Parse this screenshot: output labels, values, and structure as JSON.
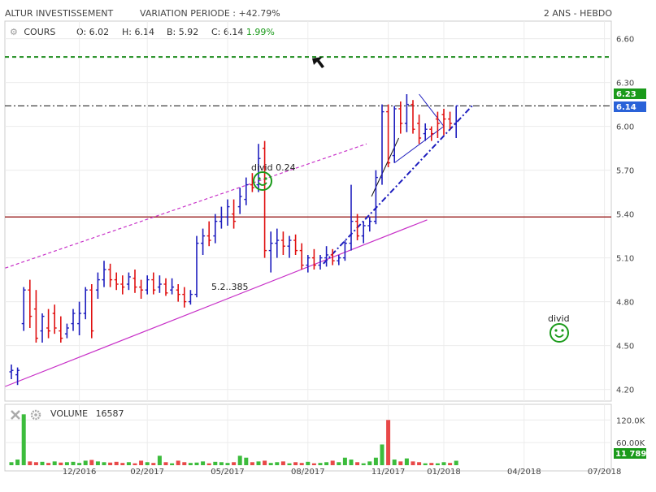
{
  "header": {
    "instrument": "ALTUR INVESTISSEMENT",
    "variation_label": "VARIATION PERIODE :",
    "variation_value": "+42.79%",
    "period": "2 ANS - HEBDO"
  },
  "ohlc_bar": {
    "series_label": "COURS",
    "open_label": "O:",
    "open": "6.02",
    "high_label": "H:",
    "high": "6.14",
    "low_label": "B:",
    "low": "5.92",
    "close_label": "C:",
    "close": "6.14",
    "change": "1.99%"
  },
  "volume_panel": {
    "label": "VOLUME",
    "value": "16587",
    "axis_ticks": [
      "120.0K",
      "60.00K"
    ],
    "last_badge": "11 789",
    "last_value": 11789
  },
  "price_badges": {
    "upper": "6.23",
    "lower": "6.14"
  },
  "annotations": {
    "divid_1": "divid 0.24",
    "divid_2": "divid",
    "level_label": "5.2..385"
  },
  "colors": {
    "up": "#1e1ebe",
    "down": "#e01010",
    "channel": "#c832c8",
    "resistance": "#1a8a1a",
    "support_line": "#a03030",
    "dashdot": "#1e1ebe",
    "badge_green": "#1a9a1a",
    "badge_blue": "#2a62d8"
  },
  "chart_data": {
    "type": "ohlc",
    "x_axis": {
      "tick_labels": [
        "12/2016",
        "02/2017",
        "05/2017",
        "08/2017",
        "11/2017",
        "01/2018",
        "04/2018",
        "07/2018"
      ],
      "tick_weeks": [
        11,
        22,
        35,
        48,
        61,
        70,
        83,
        96
      ]
    },
    "y_axis": {
      "ticks": [
        "6.60",
        "6.30",
        "6.00",
        "5.70",
        "5.40",
        "5.10",
        "4.80",
        "4.50",
        "4.20"
      ],
      "tick_values": [
        6.6,
        6.3,
        6.0,
        5.7,
        5.4,
        5.1,
        4.8,
        4.5,
        4.2
      ],
      "ylim": [
        4.12,
        6.72
      ]
    },
    "ohlc": [
      [
        4.32,
        4.37,
        4.27,
        4.33
      ],
      [
        4.3,
        4.35,
        4.23,
        4.33
      ],
      [
        4.65,
        4.9,
        4.6,
        4.88
      ],
      [
        4.88,
        4.95,
        4.62,
        4.7
      ],
      [
        4.75,
        4.88,
        4.52,
        4.55
      ],
      [
        4.6,
        4.72,
        4.52,
        4.7
      ],
      [
        4.62,
        4.75,
        4.55,
        4.6
      ],
      [
        4.72,
        4.78,
        4.58,
        4.62
      ],
      [
        4.6,
        4.7,
        4.52,
        4.55
      ],
      [
        4.58,
        4.65,
        4.55,
        4.62
      ],
      [
        4.65,
        4.75,
        4.6,
        4.72
      ],
      [
        4.65,
        4.8,
        4.57,
        4.72
      ],
      [
        4.72,
        4.9,
        4.68,
        4.88
      ],
      [
        4.88,
        4.92,
        4.55,
        4.6
      ],
      [
        4.88,
        5.0,
        4.82,
        4.95
      ],
      [
        4.95,
        5.08,
        4.9,
        5.02
      ],
      [
        5.02,
        5.06,
        4.9,
        4.95
      ],
      [
        4.95,
        5.0,
        4.88,
        4.92
      ],
      [
        4.92,
        4.98,
        4.85,
        4.9
      ],
      [
        4.92,
        5.0,
        4.88,
        4.97
      ],
      [
        4.96,
        5.02,
        4.86,
        4.9
      ],
      [
        4.9,
        4.95,
        4.82,
        4.88
      ],
      [
        4.88,
        4.98,
        4.85,
        4.95
      ],
      [
        4.95,
        5.0,
        4.85,
        4.88
      ],
      [
        4.9,
        4.98,
        4.86,
        4.92
      ],
      [
        4.92,
        4.96,
        4.84,
        4.86
      ],
      [
        4.88,
        4.96,
        4.85,
        4.9
      ],
      [
        4.88,
        4.92,
        4.8,
        4.85
      ],
      [
        4.85,
        4.9,
        4.76,
        4.8
      ],
      [
        4.8,
        4.88,
        4.78,
        4.85
      ],
      [
        4.85,
        5.25,
        4.83,
        5.2
      ],
      [
        5.2,
        5.3,
        5.12,
        5.25
      ],
      [
        5.25,
        5.35,
        5.18,
        5.22
      ],
      [
        5.25,
        5.4,
        5.2,
        5.35
      ],
      [
        5.35,
        5.45,
        5.3,
        5.38
      ],
      [
        5.38,
        5.5,
        5.32,
        5.45
      ],
      [
        5.4,
        5.5,
        5.3,
        5.35
      ],
      [
        5.45,
        5.58,
        5.4,
        5.52
      ],
      [
        5.5,
        5.65,
        5.46,
        5.6
      ],
      [
        5.6,
        5.68,
        5.55,
        5.58
      ],
      [
        5.6,
        5.88,
        5.55,
        5.78
      ],
      [
        5.85,
        5.9,
        5.1,
        5.15
      ],
      [
        5.15,
        5.28,
        5.0,
        5.2
      ],
      [
        5.2,
        5.3,
        5.1,
        5.22
      ],
      [
        5.22,
        5.28,
        5.12,
        5.18
      ],
      [
        5.18,
        5.25,
        5.1,
        5.22
      ],
      [
        5.22,
        5.26,
        5.12,
        5.15
      ],
      [
        5.15,
        5.2,
        5.02,
        5.05
      ],
      [
        5.05,
        5.12,
        5.0,
        5.1
      ],
      [
        5.1,
        5.16,
        5.02,
        5.05
      ],
      [
        5.05,
        5.12,
        5.02,
        5.1
      ],
      [
        5.1,
        5.18,
        5.04,
        5.12
      ],
      [
        5.12,
        5.16,
        5.05,
        5.08
      ],
      [
        5.08,
        5.12,
        5.05,
        5.1
      ],
      [
        5.1,
        5.22,
        5.08,
        5.2
      ],
      [
        5.2,
        5.6,
        5.15,
        5.35
      ],
      [
        5.35,
        5.4,
        5.22,
        5.25
      ],
      [
        5.25,
        5.35,
        5.2,
        5.32
      ],
      [
        5.32,
        5.38,
        5.28,
        5.35
      ],
      [
        5.35,
        5.7,
        5.33,
        5.65
      ],
      [
        5.65,
        6.15,
        5.6,
        6.1
      ],
      [
        6.1,
        6.15,
        5.72,
        5.75
      ],
      [
        5.8,
        6.14,
        5.75,
        6.12
      ],
      [
        6.12,
        6.17,
        5.95,
        6.02
      ],
      [
        6.02,
        6.22,
        5.96,
        6.15
      ],
      [
        6.15,
        6.18,
        5.95,
        5.98
      ],
      [
        6.02,
        6.08,
        5.88,
        5.92
      ],
      [
        5.95,
        6.02,
        5.9,
        5.98
      ],
      [
        5.98,
        6.0,
        5.9,
        5.95
      ],
      [
        6.05,
        6.1,
        5.92,
        6.02
      ],
      [
        6.08,
        6.12,
        5.94,
        6.05
      ],
      [
        6.05,
        6.1,
        5.98,
        6.02
      ],
      [
        6.02,
        6.14,
        5.92,
        6.14
      ]
    ],
    "volume": [
      8,
      15,
      135,
      10,
      8,
      9,
      6,
      10,
      7,
      8,
      9,
      6,
      12,
      14,
      10,
      8,
      7,
      9,
      6,
      8,
      5,
      12,
      8,
      6,
      25,
      8,
      5,
      12,
      8,
      6,
      7,
      10,
      5,
      9,
      8,
      6,
      8,
      25,
      20,
      8,
      10,
      12,
      6,
      8,
      10,
      5,
      8,
      6,
      9,
      5,
      6,
      8,
      12,
      8,
      20,
      15,
      8,
      5,
      10,
      20,
      55,
      120,
      15,
      10,
      18,
      10,
      8,
      5,
      6,
      5,
      8,
      6,
      11.8
    ],
    "volume_ylim": [
      0,
      140
    ]
  }
}
